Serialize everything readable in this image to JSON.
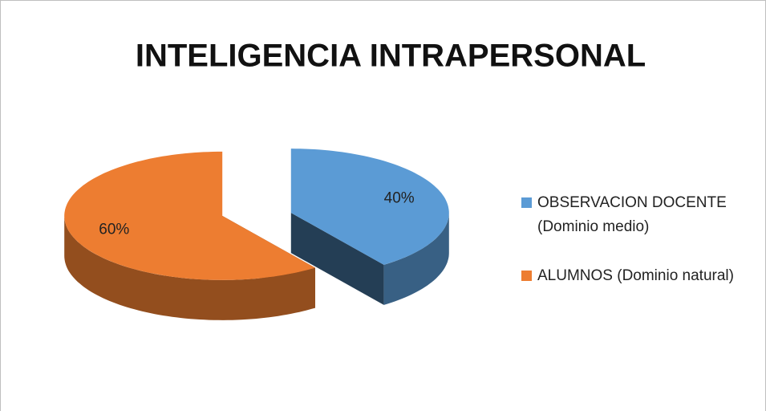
{
  "chart_data": {
    "type": "pie",
    "title": "INTELIGENCIA INTRAPERSONAL",
    "categories": [
      "OBSERVACION DOCENTE (Dominio medio)",
      "ALUMNOS (Dominio natural)"
    ],
    "values": [
      40,
      60
    ],
    "value_labels": [
      "40%",
      "60%"
    ],
    "colors": [
      "#5b9bd5",
      "#ed7d31"
    ],
    "legend": "right"
  }
}
